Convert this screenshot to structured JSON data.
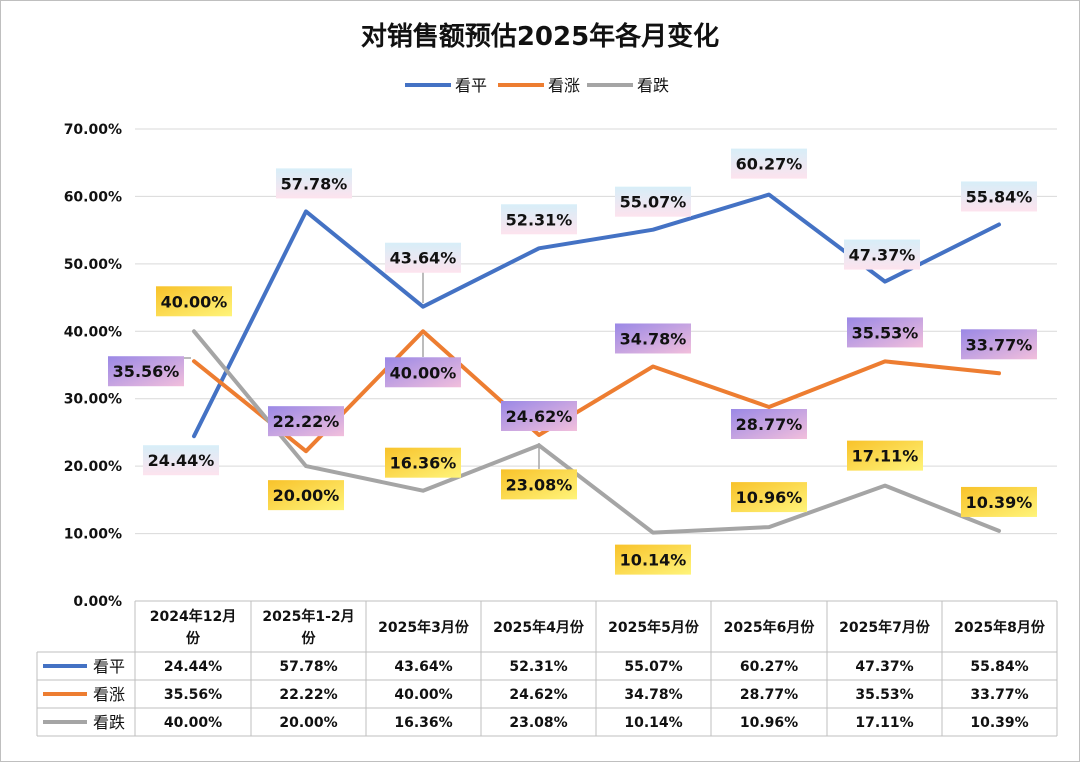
{
  "chart_data": {
    "type": "line",
    "title": "对销售额预估2025年各月变化",
    "categories": [
      "2024年12月份",
      "2025年1-2月份",
      "2025年3月份",
      "2025年4月份",
      "2025年5月份",
      "2025年6月份",
      "2025年7月份",
      "2025年8月份"
    ],
    "category_lines": [
      [
        "2024年12月",
        "份"
      ],
      [
        "2025年1-2月",
        "份"
      ],
      [
        "2025年3月份"
      ],
      [
        "2025年4月份"
      ],
      [
        "2025年5月份"
      ],
      [
        "2025年6月份"
      ],
      [
        "2025年7月份"
      ],
      [
        "2025年8月份"
      ]
    ],
    "series": [
      {
        "name": "看平",
        "color": "#4472C4",
        "values": [
          24.44,
          57.78,
          43.64,
          52.31,
          55.07,
          60.27,
          47.37,
          55.84
        ],
        "labels": [
          "24.44%",
          "57.78%",
          "43.64%",
          "52.31%",
          "55.07%",
          "60.27%",
          "47.37%",
          "55.84%"
        ]
      },
      {
        "name": "看涨",
        "color": "#ED7D31",
        "values": [
          35.56,
          22.22,
          40.0,
          24.62,
          34.78,
          28.77,
          35.53,
          33.77
        ],
        "labels": [
          "35.56%",
          "22.22%",
          "40.00%",
          "24.62%",
          "34.78%",
          "28.77%",
          "35.53%",
          "33.77%"
        ]
      },
      {
        "name": "看跌",
        "color": "#A5A5A5",
        "values": [
          40.0,
          20.0,
          16.36,
          23.08,
          10.14,
          10.96,
          17.11,
          10.39
        ],
        "labels": [
          "40.00%",
          "20.00%",
          "16.36%",
          "23.08%",
          "10.14%",
          "10.96%",
          "17.11%",
          "10.39%"
        ]
      }
    ],
    "ylim": [
      0,
      70
    ],
    "yticks": [
      "0.00%",
      "10.00%",
      "20.00%",
      "30.00%",
      "40.00%",
      "50.00%",
      "60.00%",
      "70.00%"
    ],
    "grid": true,
    "legend": "top",
    "data_table": true
  }
}
